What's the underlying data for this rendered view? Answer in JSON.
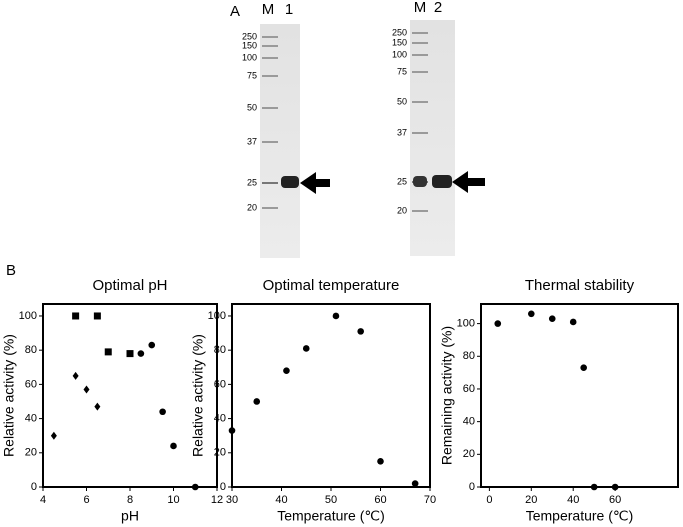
{
  "panel_a": {
    "label": "A",
    "gels": [
      {
        "marker_lane": "M",
        "sample_lane": "1",
        "markers": [
          "250",
          "150",
          "100",
          "75",
          "50",
          "37",
          "25",
          "20"
        ]
      },
      {
        "marker_lane": "M",
        "sample_lane": "2",
        "markers": [
          "250",
          "150",
          "100",
          "75",
          "50",
          "37",
          "25",
          "20"
        ]
      }
    ]
  },
  "panel_b": {
    "label": "B"
  },
  "chart_data": [
    {
      "type": "scatter",
      "title": "Optimal pH",
      "x_label": "pH",
      "y_label": "Relative activity (%)",
      "xlim": [
        4,
        12
      ],
      "xticks": [
        4,
        6,
        8,
        10,
        12
      ],
      "ylim": [
        0,
        107
      ],
      "yticks": [
        0,
        20,
        40,
        60,
        80,
        100
      ],
      "series": [
        {
          "marker": "diamond",
          "color": "#000000",
          "x": [
            4.5,
            5.5,
            6,
            6.5
          ],
          "values": [
            30,
            65,
            57,
            47
          ]
        },
        {
          "marker": "square",
          "color": "#000000",
          "x": [
            5.5,
            6.5,
            7,
            8
          ],
          "values": [
            100,
            100,
            79,
            78
          ]
        },
        {
          "marker": "circle",
          "color": "#000000",
          "x": [
            8.5,
            9,
            9.5,
            10,
            11
          ],
          "values": [
            78,
            83,
            44,
            24,
            0
          ]
        }
      ]
    },
    {
      "type": "scatter",
      "title": "Optimal temperature",
      "x_label": "Temperature (℃)",
      "y_label": "Relative activity (%)",
      "xlim": [
        30,
        70
      ],
      "xticks": [
        30,
        40,
        50,
        60,
        70
      ],
      "ylim": [
        0,
        107
      ],
      "yticks": [
        0,
        20,
        40,
        60,
        80,
        100
      ],
      "series": [
        {
          "marker": "circle",
          "color": "#000000",
          "x": [
            30,
            35,
            41,
            45,
            51,
            56,
            60,
            67
          ],
          "values": [
            33,
            50,
            68,
            81,
            100,
            91,
            15,
            2
          ]
        }
      ]
    },
    {
      "type": "scatter",
      "title": "Thermal stability",
      "x_label": "Temperature (℃)",
      "y_label": "Remaining activity (%)",
      "xlim": [
        -4,
        90
      ],
      "xticks": [
        0,
        20,
        40,
        60
      ],
      "ylim": [
        0,
        112
      ],
      "yticks": [
        0,
        20,
        40,
        60,
        80,
        100
      ],
      "series": [
        {
          "marker": "circle",
          "color": "#000000",
          "x": [
            4,
            20,
            30,
            40,
            45,
            50,
            60
          ],
          "values": [
            100,
            106,
            103,
            101,
            73,
            0,
            0
          ]
        }
      ]
    }
  ]
}
